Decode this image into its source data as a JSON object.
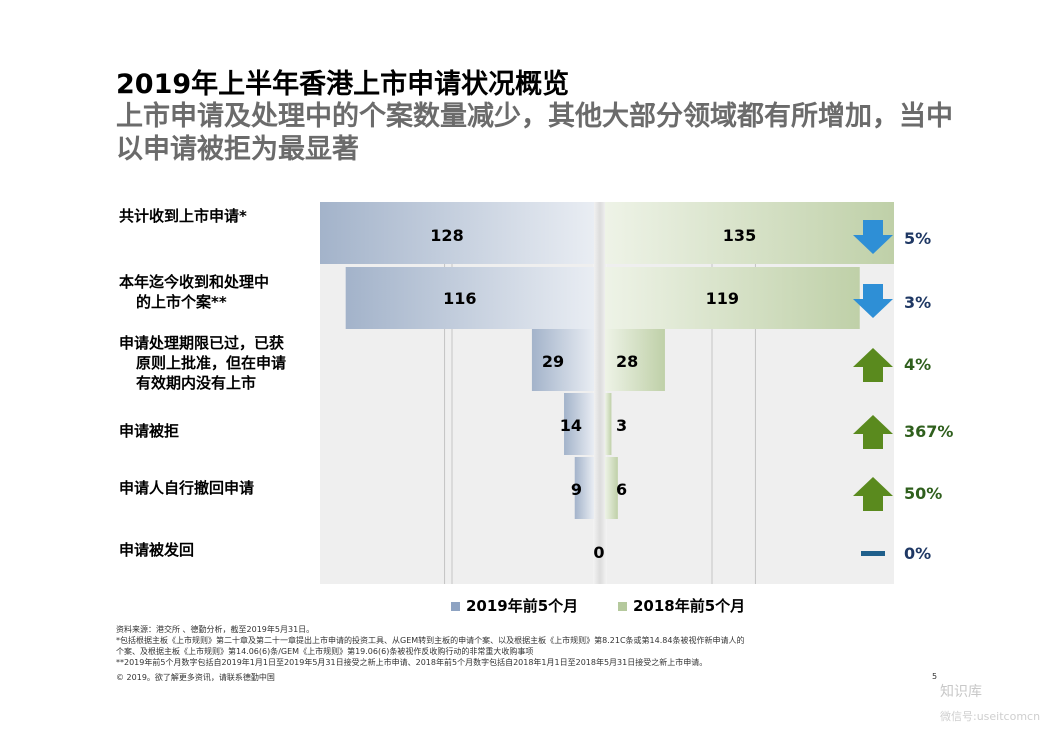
{
  "title": "2019年上半年香港上市申请状况概览",
  "subtitle": "上市申请及处理中的个案数量减少，其他大部分领域都有所增加，当中以申请被拒为最显著",
  "chart_data": {
    "type": "bar",
    "orientation": "horizontal-butterfly",
    "categories": [
      [
        "共计收到上市申请*"
      ],
      [
        "本年迄今收到和处理中",
        "的上市个案**"
      ],
      [
        "申请处理期限已过，已获",
        "原则上批准，但在申请",
        "有效期内没有上市"
      ],
      [
        "申请被拒"
      ],
      [
        "申请人自行撤回申请"
      ],
      [
        "申请被发回"
      ]
    ],
    "series": [
      {
        "name": "2019年前5个月",
        "color": "#a9b8cf",
        "values": [
          128,
          116,
          29,
          14,
          9,
          0
        ]
      },
      {
        "name": "2018年前5个月",
        "color": "#c3d3ae",
        "values": [
          135,
          119,
          28,
          3,
          6,
          0
        ]
      }
    ],
    "changes": [
      {
        "label": "5%",
        "direction": "down",
        "color": "#1f3864"
      },
      {
        "label": "3%",
        "direction": "down",
        "color": "#1f3864"
      },
      {
        "label": "4%",
        "direction": "up",
        "color": "#2f5f1d"
      },
      {
        "label": "367%",
        "direction": "up",
        "color": "#2f5f1d"
      },
      {
        "label": "50%",
        "direction": "up",
        "color": "#2f5f1d"
      },
      {
        "label": "0%",
        "direction": "flat",
        "color": "#1f3864"
      }
    ],
    "zero_label": "0",
    "xlim": [
      -128,
      135
    ],
    "arrow_colors": {
      "down": "#2e8fd6",
      "up": "#5a8a1e",
      "flat": "#1f5f8b"
    }
  },
  "legend": [
    {
      "label": "2019年前5个月",
      "color": "#8ea3c2"
    },
    {
      "label": "2018年前5个月",
      "color": "#b5c99d"
    }
  ],
  "footnotes": [
    "资料来源：港交所 、德勤分析，截至2019年5月31日。",
    "*包括根据主板《上市规则》第二十章及第二十一章提出上市申请的投资工具、从GEM转到主板的申请个案、以及根据主板《上市规则》第8.21C条或第14.84条被视作新申请人的",
    "个案、及根据主板《上市规则》第14.06(6)条/GEM《上市规则》第19.06(6)条被视作反收购行动的非常重大收购事项",
    "**2019年前5个月数字包括自2019年1月1日至2019年5月31日接受之新上市申请、2018年前5个月数字包括自2018年1月1日至2018年5月31日接受之新上市申请。",
    "© 2019。欲了解更多资讯，请联系德勤中国"
  ],
  "page_number": "5",
  "watermark": {
    "name": "知识库",
    "account": "微信号:useitcomcn"
  }
}
